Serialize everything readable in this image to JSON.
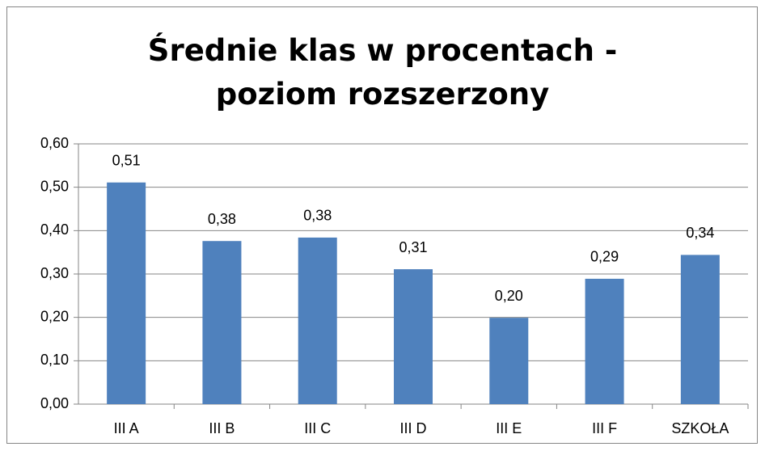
{
  "chart_data": {
    "type": "bar",
    "title": "Średnie klas w procentach - poziom rozszerzony",
    "categories": [
      "III A",
      "III B",
      "III C",
      "III D",
      "III E",
      "III F",
      "SZKOŁA"
    ],
    "values": [
      0.511,
      0.376,
      0.384,
      0.311,
      0.199,
      0.289,
      0.344
    ],
    "value_labels": [
      "0,51",
      "0,38",
      "0,38",
      "0,31",
      "0,20",
      "0,29",
      "0,34"
    ],
    "color": "#4f81bd",
    "ylim": [
      0,
      0.6
    ],
    "yticks": [
      {
        "value": 0,
        "label": "0,00"
      },
      {
        "value": 0.1,
        "label": "0,10"
      },
      {
        "value": 0.2,
        "label": "0,20"
      },
      {
        "value": 0.3,
        "label": "0,30"
      },
      {
        "value": 0.4,
        "label": "0,40"
      },
      {
        "value": 0.5,
        "label": "0,50"
      },
      {
        "value": 0.6,
        "label": "0,60"
      }
    ],
    "grid": true
  }
}
